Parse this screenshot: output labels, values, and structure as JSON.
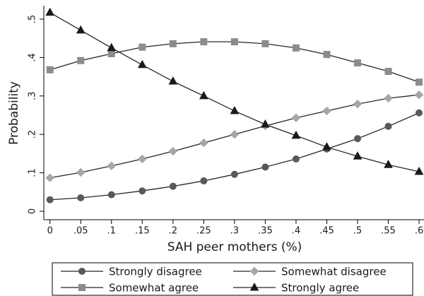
{
  "chart_data": {
    "type": "line",
    "x_label": "SAH peer mothers (%)",
    "y_label": "Probability",
    "x": [
      0,
      0.05,
      0.1,
      0.15,
      0.2,
      0.25,
      0.3,
      0.35,
      0.4,
      0.45,
      0.5,
      0.55,
      0.6
    ],
    "xlim": [
      -0.01,
      0.608
    ],
    "xticks": [
      0,
      {
        "value": 0.05,
        "label": ".05"
      },
      {
        "value": 0.1,
        "label": ".1"
      },
      {
        "value": 0.15,
        "label": ".15"
      },
      {
        "value": 0.2,
        "label": ".2"
      },
      {
        "value": 0.25,
        "label": ".25"
      },
      {
        "value": 0.3,
        "label": ".3"
      },
      {
        "value": 0.35,
        "label": ".35"
      },
      {
        "value": 0.4,
        "label": ".4"
      },
      {
        "value": 0.45,
        "label": ".45"
      },
      {
        "value": 0.5,
        "label": ".5"
      },
      {
        "value": 0.55,
        "label": ".55"
      },
      {
        "value": 0.6,
        "label": ".6"
      }
    ],
    "ylim": [
      -0.022,
      0.535
    ],
    "yticks": [
      0,
      {
        "value": 0.1,
        "label": ".1"
      },
      {
        "value": 0.2,
        "label": ".2"
      },
      {
        "value": 0.3,
        "label": ".3"
      },
      {
        "value": 0.4,
        "label": ".4"
      },
      {
        "value": 0.5,
        "label": ".5"
      }
    ],
    "grid": false,
    "legend_position": "bottom",
    "line_color": "#262626",
    "series": [
      {
        "name": "Strongly disagree",
        "color": "#595959",
        "marker": "circle",
        "values": [
          0.03,
          0.035,
          0.043,
          0.053,
          0.065,
          0.079,
          0.096,
          0.115,
          0.136,
          0.162,
          0.189,
          0.221,
          0.256
        ]
      },
      {
        "name": "Somewhat disagree",
        "color": "#a6a6a6",
        "marker": "diamond",
        "values": [
          0.087,
          0.101,
          0.118,
          0.136,
          0.156,
          0.178,
          0.2,
          0.222,
          0.243,
          0.261,
          0.279,
          0.294,
          0.303
        ]
      },
      {
        "name": "Somewhat agree",
        "color": "#8c8c8c",
        "marker": "square",
        "values": [
          0.368,
          0.392,
          0.41,
          0.427,
          0.436,
          0.441,
          0.441,
          0.436,
          0.425,
          0.408,
          0.386,
          0.364,
          0.336
        ]
      },
      {
        "name": "Strongly agree",
        "color": "#1a1a1a",
        "marker": "triangle",
        "values": [
          0.517,
          0.471,
          0.425,
          0.381,
          0.338,
          0.3,
          0.261,
          0.226,
          0.197,
          0.167,
          0.143,
          0.121,
          0.103
        ]
      }
    ]
  }
}
